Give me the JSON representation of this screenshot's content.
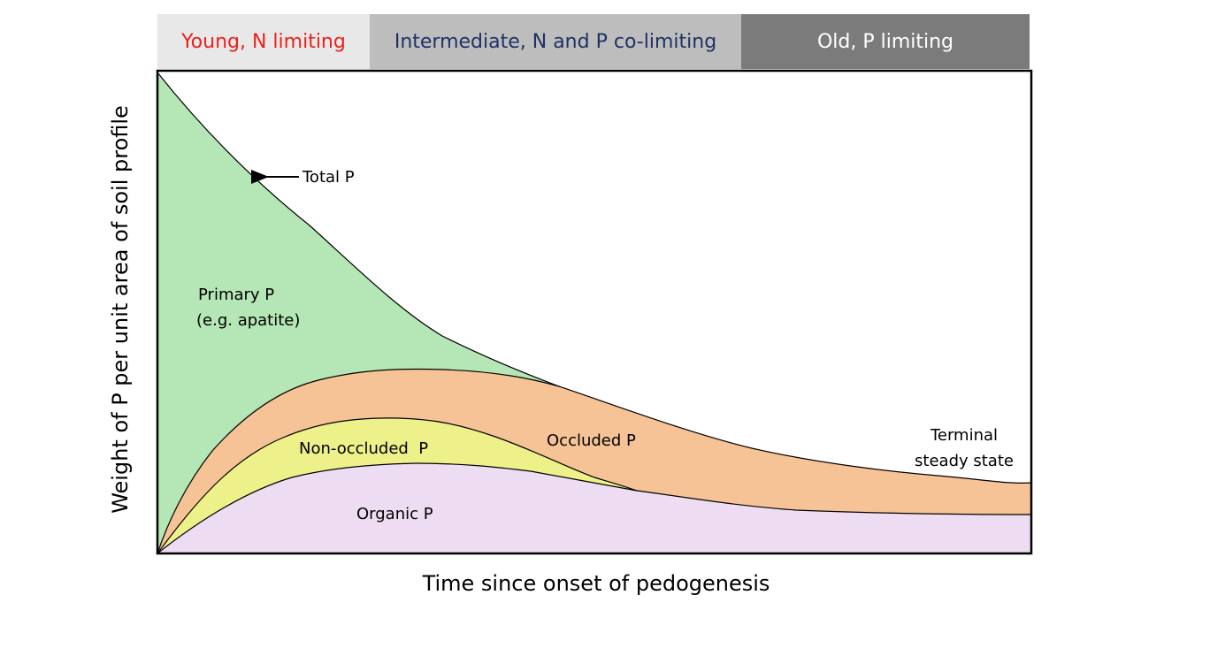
{
  "bands": {
    "young": "Young, N limiting",
    "intermediate": "Intermediate, N and P co-limiting",
    "old": "Old, P limiting"
  },
  "axes": {
    "ylabel": "Weight of P per unit area of soil profile",
    "xlabel": "Time since onset of pedogenesis"
  },
  "labels": {
    "total_p": "Total P",
    "primary_p_1": "Primary P",
    "primary_p_2": "(e.g. apatite)",
    "non_occluded_p": "Non-occluded  P",
    "occluded_p": "Occluded P",
    "organic_p": "Organic P",
    "terminal_1": "Terminal",
    "terminal_2": "steady state"
  },
  "colors": {
    "primary": "#b5e6b5",
    "occluded": "#f5c396",
    "non_occluded": "#eef08a",
    "organic": "#eedcf2",
    "young_text": "#e8231e",
    "intermediate_text": "#1f3264",
    "old_text": "#ffffff"
  }
}
